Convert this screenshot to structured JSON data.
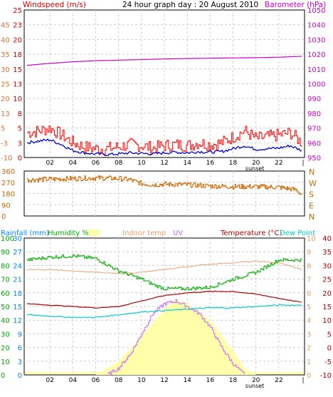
{
  "header": {
    "wind_label": "Windspeed (m/s)",
    "title": "24 hour graph day : 20 August 2010",
    "baro_label": "Barometer (hPa)"
  },
  "legend2": {
    "rainfall": "Rainfall (mm)",
    "humidity": "Humidity %",
    "indoor": "Indoor temp",
    "uv": "UV",
    "temperature": "Temperature (°C)",
    "dewpoint": "Dew Point"
  },
  "colors": {
    "wind_gust": "#ff0000",
    "wind_avg": "#0000cc",
    "barometer": "#cc00cc",
    "direction": "#cc6600",
    "humidity": "#00aa00",
    "indoor": "#e8a070",
    "uv": "#cc66ff",
    "solar": "#ffffaa",
    "temperature": "#aa0000",
    "dewpoint": "#00cccc",
    "rainfall": "#0088ff"
  },
  "chart_data": [
    {
      "type": "line",
      "name": "wind-baro",
      "x_ticks": [
        "02",
        "04",
        "06",
        "08",
        "10",
        "12",
        "14",
        "16",
        "18",
        "20",
        "22"
      ],
      "sunset_label": "sunset",
      "y_left_ticks": [
        -10,
        -3,
        5,
        13,
        20,
        25,
        30,
        35,
        40,
        45
      ],
      "y_left_ticks_inner": [
        0,
        3,
        5,
        8,
        10,
        13,
        15,
        18,
        20,
        23,
        25
      ],
      "y_right_ticks": [
        950,
        960,
        970,
        980,
        990,
        1000,
        1010,
        1020,
        1030,
        1040,
        1050
      ],
      "ylim_left": [
        0,
        25
      ],
      "ylim_right": [
        950,
        1050
      ],
      "series": [
        {
          "name": "Windspeed gust",
          "x": [
            0,
            1,
            2,
            3,
            4,
            5,
            6,
            7,
            8,
            9,
            10,
            11,
            12,
            13,
            14,
            15,
            16,
            17,
            18,
            19,
            20,
            21,
            22,
            23,
            24
          ],
          "values": [
            4.2,
            4.5,
            5,
            3.8,
            2.5,
            1.8,
            1.5,
            1.5,
            1.8,
            2.2,
            2.0,
            1.6,
            2.0,
            2.2,
            2.0,
            2.5,
            2.2,
            2.5,
            3.5,
            4.5,
            3.2,
            3.5,
            3.8,
            4.2,
            2.5
          ]
        },
        {
          "name": "Windspeed",
          "x": [
            0,
            1,
            2,
            3,
            4,
            5,
            6,
            7,
            8,
            9,
            10,
            11,
            12,
            13,
            14,
            15,
            16,
            17,
            18,
            19,
            20,
            21,
            22,
            23,
            24
          ],
          "values": [
            2.5,
            2.8,
            3.0,
            2.2,
            1.2,
            0.8,
            0.6,
            0.5,
            0.6,
            0.8,
            0.7,
            0.6,
            0.8,
            0.9,
            0.8,
            1.0,
            0.9,
            1.0,
            1.5,
            2.0,
            1.4,
            1.5,
            1.6,
            2.0,
            1.2
          ]
        },
        {
          "name": "Barometer",
          "x": [
            0,
            2,
            4,
            6,
            8,
            10,
            12,
            14,
            16,
            18,
            20,
            22,
            24
          ],
          "values": [
            1012.5,
            1013.8,
            1014.9,
            1015.6,
            1016.0,
            1016.4,
            1016.8,
            1017.1,
            1017.3,
            1017.5,
            1017.7,
            1018.0,
            1018.6
          ]
        }
      ]
    },
    {
      "type": "line",
      "name": "wind-direction",
      "x_ticks": [],
      "y_left_ticks": [
        360,
        270,
        180,
        90,
        0
      ],
      "y_right_labels": [
        "N",
        "W",
        "S",
        "E",
        "N"
      ],
      "ylim": [
        0,
        360
      ],
      "series": [
        {
          "name": "Wind direction",
          "x": [
            0,
            2,
            4,
            6,
            8,
            9,
            10,
            11,
            12,
            14,
            16,
            18,
            20,
            22,
            23.5,
            24
          ],
          "values": [
            290,
            295,
            300,
            305,
            300,
            290,
            260,
            250,
            255,
            250,
            240,
            235,
            235,
            230,
            210,
            170
          ]
        }
      ]
    },
    {
      "type": "line",
      "name": "temp-humidity",
      "x_ticks": [
        "02",
        "04",
        "06",
        "08",
        "10",
        "12",
        "14",
        "16",
        "18",
        "20",
        "22"
      ],
      "sunset_label": "sunset",
      "y_hum_ticks": [
        0,
        10,
        20,
        30,
        40,
        50,
        60,
        70,
        80,
        90,
        100
      ],
      "y_rain_ticks": [
        0,
        3,
        6,
        9,
        12,
        15,
        18,
        21,
        24,
        27,
        30
      ],
      "y_uv_ticks": [
        0,
        1,
        2,
        3,
        4,
        5,
        6,
        7,
        8,
        9,
        10
      ],
      "y_right_ticks": [
        -10,
        -5,
        0,
        5,
        10,
        15,
        20,
        25,
        30,
        35,
        40
      ],
      "ylim_temp": [
        -10,
        40
      ],
      "series": [
        {
          "name": "Humidity",
          "x": [
            0,
            2,
            4,
            6,
            8,
            10,
            11,
            12,
            14,
            16,
            17,
            18,
            20,
            22,
            24
          ],
          "values": [
            84,
            86,
            87,
            85,
            76,
            70,
            66,
            63,
            63,
            64,
            67,
            70,
            75,
            84,
            84
          ]
        },
        {
          "name": "Indoor temp",
          "x": [
            0,
            2,
            4,
            6,
            8,
            10,
            12,
            14,
            16,
            18,
            20,
            22,
            24
          ],
          "values": [
            28.5,
            28.5,
            28.0,
            27.5,
            27.0,
            27.5,
            28.5,
            29.5,
            30.5,
            31.0,
            31.5,
            31.0,
            28.5
          ]
        },
        {
          "name": "Temperature",
          "x": [
            0,
            2,
            4,
            6,
            8,
            10,
            12,
            14,
            16,
            18,
            20,
            22,
            24
          ],
          "values": [
            16.0,
            15.5,
            15.0,
            14.5,
            15.0,
            17.0,
            19.0,
            20.0,
            20.5,
            20.5,
            19.5,
            18.0,
            16.5
          ]
        },
        {
          "name": "Dew Point",
          "x": [
            0,
            2,
            4,
            6,
            8,
            10,
            12,
            14,
            16,
            18,
            20,
            22,
            24
          ],
          "values": [
            12.0,
            11.5,
            11.0,
            11.0,
            12.0,
            13.0,
            13.5,
            14.0,
            14.5,
            14.5,
            15.0,
            15.5,
            15.5
          ]
        },
        {
          "name": "UV",
          "x": [
            7,
            8,
            9,
            10,
            11,
            12,
            13,
            14,
            15,
            16,
            17,
            18,
            19
          ],
          "values": [
            0,
            0.5,
            1.5,
            3.0,
            4.5,
            5.2,
            5.4,
            5.0,
            4.5,
            3.5,
            2.0,
            0.8,
            0
          ]
        },
        {
          "name": "Solar",
          "x": [
            6,
            8,
            10,
            12,
            13,
            14,
            16,
            18,
            19,
            20
          ],
          "values": [
            0,
            1.0,
            2.8,
            4.8,
            5.5,
            5.2,
            4.0,
            1.8,
            0.5,
            0
          ]
        }
      ]
    }
  ]
}
